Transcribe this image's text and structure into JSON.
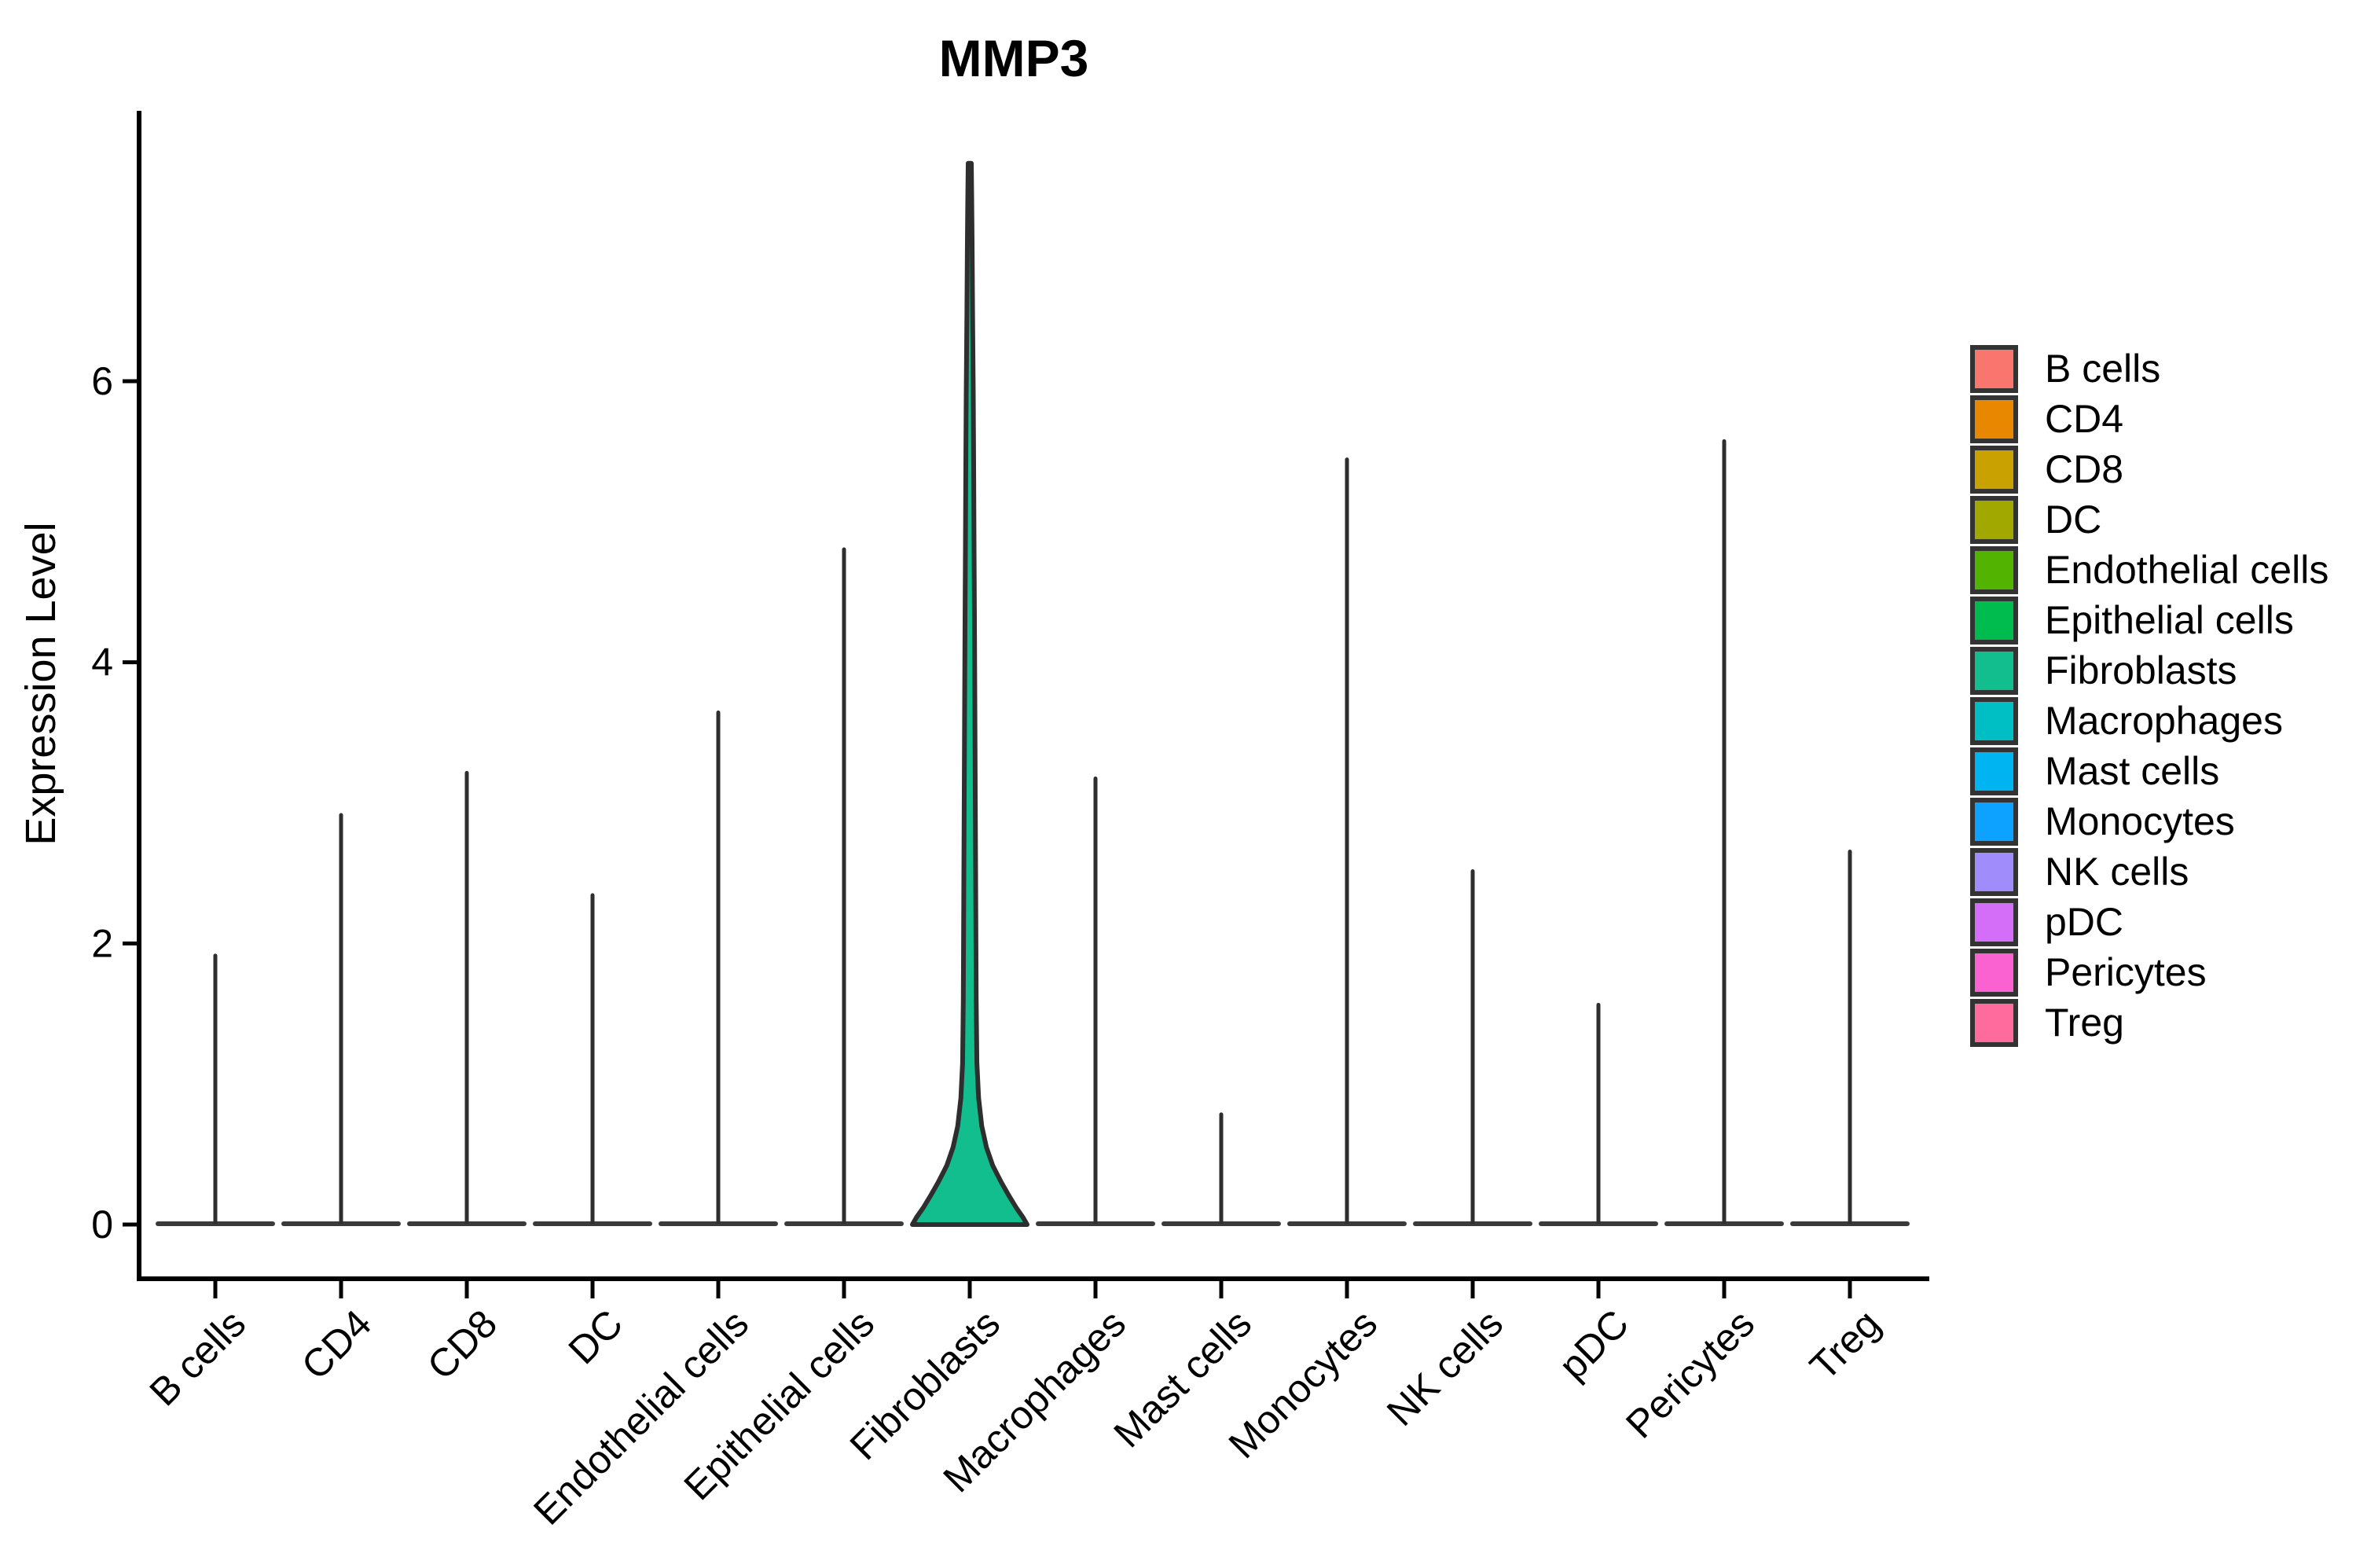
{
  "title": "MMP3",
  "y_axis": {
    "label": "Expression Level",
    "tick_values": [
      0,
      2,
      4,
      6
    ]
  },
  "chart_data": {
    "type": "violin",
    "title": "MMP3",
    "xlabel": "",
    "ylabel": "Expression Level",
    "ylim": [
      0,
      7.6
    ],
    "yticks": [
      0,
      2,
      4,
      6
    ],
    "grid": "off",
    "legend_position": "right",
    "x_tick_rotation": 45,
    "categories": [
      "B cells",
      "CD4",
      "CD8",
      "DC",
      "Endothelial cells",
      "Epithelial cells",
      "Fibroblasts",
      "Macrophages",
      "Mast cells",
      "Monocytes",
      "NK cells",
      "pDC",
      "Pericytes",
      "Treg"
    ],
    "violins": [
      {
        "category": "B cells",
        "color": "#F8766D",
        "max_expression": 1.93,
        "median": 0
      },
      {
        "category": "CD4",
        "color": "#E78800",
        "max_expression": 2.93,
        "median": 0
      },
      {
        "category": "CD8",
        "color": "#C9A100",
        "max_expression": 3.23,
        "median": 0
      },
      {
        "category": "DC",
        "color": "#A1A900",
        "max_expression": 2.36,
        "median": 0
      },
      {
        "category": "Endothelial cells",
        "color": "#52B400",
        "max_expression": 3.66,
        "median": 0
      },
      {
        "category": "Epithelial cells",
        "color": "#00BB4E",
        "max_expression": 4.82,
        "median": 0
      },
      {
        "category": "Fibroblasts",
        "color": "#12BE8D",
        "max_expression": 7.55,
        "median": 0
      },
      {
        "category": "Macrophages",
        "color": "#00BFC4",
        "max_expression": 3.19,
        "median": 0
      },
      {
        "category": "Mast cells",
        "color": "#00B4F1",
        "max_expression": 0.8,
        "median": 0
      },
      {
        "category": "Monocytes",
        "color": "#0DA2FF",
        "max_expression": 5.46,
        "median": 0
      },
      {
        "category": "NK cells",
        "color": "#A08CFA",
        "max_expression": 2.53,
        "median": 0
      },
      {
        "category": "pDC",
        "color": "#D46EF9",
        "max_expression": 1.58,
        "median": 0
      },
      {
        "category": "Pericytes",
        "color": "#FA62D2",
        "max_expression": 5.59,
        "median": 0
      },
      {
        "category": "Treg",
        "color": "#FF6B9C",
        "max_expression": 2.67,
        "median": 0
      }
    ],
    "highlight_violin": {
      "category": "Fibroblasts",
      "fill": "#12BE8D",
      "outline": "#2E2E2E",
      "density_profile_value_widthfraction": [
        [
          0.0,
          1.0
        ],
        [
          0.05,
          0.93
        ],
        [
          0.12,
          0.81
        ],
        [
          0.2,
          0.69
        ],
        [
          0.3,
          0.55
        ],
        [
          0.42,
          0.4
        ],
        [
          0.55,
          0.29
        ],
        [
          0.7,
          0.21
        ],
        [
          0.9,
          0.155
        ],
        [
          1.15,
          0.125
        ],
        [
          1.6,
          0.113
        ],
        [
          2.1,
          0.107
        ],
        [
          2.6,
          0.101
        ],
        [
          3.2,
          0.095
        ],
        [
          3.7,
          0.089
        ],
        [
          4.3,
          0.082
        ],
        [
          4.8,
          0.075
        ],
        [
          5.4,
          0.068
        ],
        [
          5.9,
          0.062
        ],
        [
          6.5,
          0.049
        ],
        [
          7.0,
          0.041
        ],
        [
          7.3,
          0.034
        ],
        [
          7.55,
          0.027
        ]
      ]
    },
    "style_colors": {
      "axis": "#000000",
      "spike": "#2E2E2E",
      "flat_violin_baseline": "#3A3A3A",
      "panel_background": "#FFFFFF"
    }
  },
  "legend": {
    "items": [
      {
        "label": "B cells",
        "color": "#F8766D"
      },
      {
        "label": "CD4",
        "color": "#E78800"
      },
      {
        "label": "CD8",
        "color": "#C9A100"
      },
      {
        "label": "DC",
        "color": "#A1A900"
      },
      {
        "label": "Endothelial cells",
        "color": "#52B400"
      },
      {
        "label": "Epithelial cells",
        "color": "#00BB4E"
      },
      {
        "label": "Fibroblasts",
        "color": "#12BE8D"
      },
      {
        "label": "Macrophages",
        "color": "#00BFC4"
      },
      {
        "label": "Mast cells",
        "color": "#00B4F1"
      },
      {
        "label": "Monocytes",
        "color": "#0DA2FF"
      },
      {
        "label": "NK cells",
        "color": "#A08CFA"
      },
      {
        "label": "pDC",
        "color": "#D46EF9"
      },
      {
        "label": "Pericytes",
        "color": "#FA62D2"
      },
      {
        "label": "Treg",
        "color": "#FF6B9C"
      }
    ]
  }
}
